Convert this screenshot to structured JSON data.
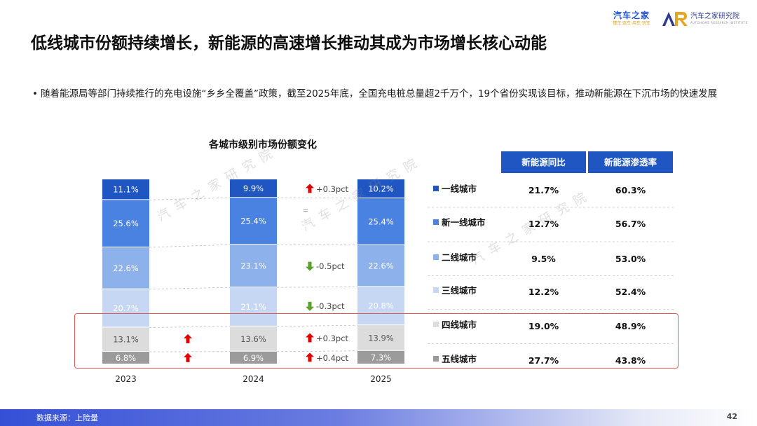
{
  "logos": {
    "autohome": {
      "main": "汽车之家",
      "sub": "懂车·选车·用车·玩车"
    },
    "institute": {
      "main": "汽车之家研究院",
      "sub": "AUTOHOME RESEARCH INSTITUTE"
    }
  },
  "title": "低线城市份额持续增长，新能源的高速增长推动其成为市场增长核心动能",
  "bullet": {
    "marker": "•",
    "text": "随着能源局等部门持续推行的充电设施“乡乡全覆盖”政策，截至2025年底，全国充电桩总量超2千万个，19个省份实现该目标，推动新能源在下沉市场的快速发展"
  },
  "watermark": "汽车之家研究院",
  "colors": {
    "tier1": "#1f56c2",
    "tier_new1": "#4a82e1",
    "tier2": "#8db1ea",
    "tier3": "#c6d7f3",
    "tier4": "#dcdcdc",
    "tier5": "#9b9b9b",
    "header_bg": "#1f56c2",
    "up": "#e00000",
    "down": "#5aa02c",
    "box": "#e25a5a"
  },
  "chart_data": {
    "type": "bar",
    "stacked": true,
    "title": "各城市级别市场份额变化",
    "categories": [
      "2023",
      "2024",
      "2025"
    ],
    "series": [
      {
        "name": "一线城市",
        "values": [
          11.1,
          9.9,
          10.2
        ]
      },
      {
        "name": "新一线城市",
        "values": [
          25.6,
          25.4,
          25.4
        ]
      },
      {
        "name": "二线城市",
        "values": [
          22.6,
          23.1,
          22.6
        ]
      },
      {
        "name": "三线城市",
        "values": [
          20.7,
          21.1,
          20.8
        ]
      },
      {
        "name": "四线城市",
        "values": [
          13.1,
          13.6,
          13.9
        ]
      },
      {
        "name": "五线城市",
        "values": [
          6.8,
          6.9,
          7.3
        ]
      }
    ],
    "annotations": [
      {
        "series": "一线城市",
        "text": "+0.3pct",
        "dir": "up"
      },
      {
        "series": "新一线城市",
        "text": "=",
        "dir": "none"
      },
      {
        "series": "二线城市",
        "text": "-0.5pct",
        "dir": "down"
      },
      {
        "series": "三线城市",
        "text": "-0.3pct",
        "dir": "down"
      },
      {
        "series": "四线城市",
        "text": "+0.3pct",
        "dir": "up"
      },
      {
        "series": "五线城市",
        "text": "+0.4pct",
        "dir": "up"
      }
    ],
    "early_arrows": [
      {
        "series": "四线城市",
        "dir": "up"
      },
      {
        "series": "五线城市",
        "dir": "up"
      }
    ],
    "ylim": [
      0,
      100
    ]
  },
  "table": {
    "headers": [
      "新能源同比",
      "新能源渗透率"
    ],
    "rows": [
      {
        "label": "一线城市",
        "yoy": "21.7%",
        "penetration": "60.3%"
      },
      {
        "label": "新一线城市",
        "yoy": "12.7%",
        "penetration": "56.7%"
      },
      {
        "label": "二线城市",
        "yoy": "9.5%",
        "penetration": "53.0%"
      },
      {
        "label": "三线城市",
        "yoy": "12.2%",
        "penetration": "52.4%"
      },
      {
        "label": "四线城市",
        "yoy": "19.0%",
        "penetration": "48.9%"
      },
      {
        "label": "五线城市",
        "yoy": "27.7%",
        "penetration": "43.8%"
      }
    ]
  },
  "footer": {
    "source": "数据来源：上险量",
    "page": "42"
  }
}
